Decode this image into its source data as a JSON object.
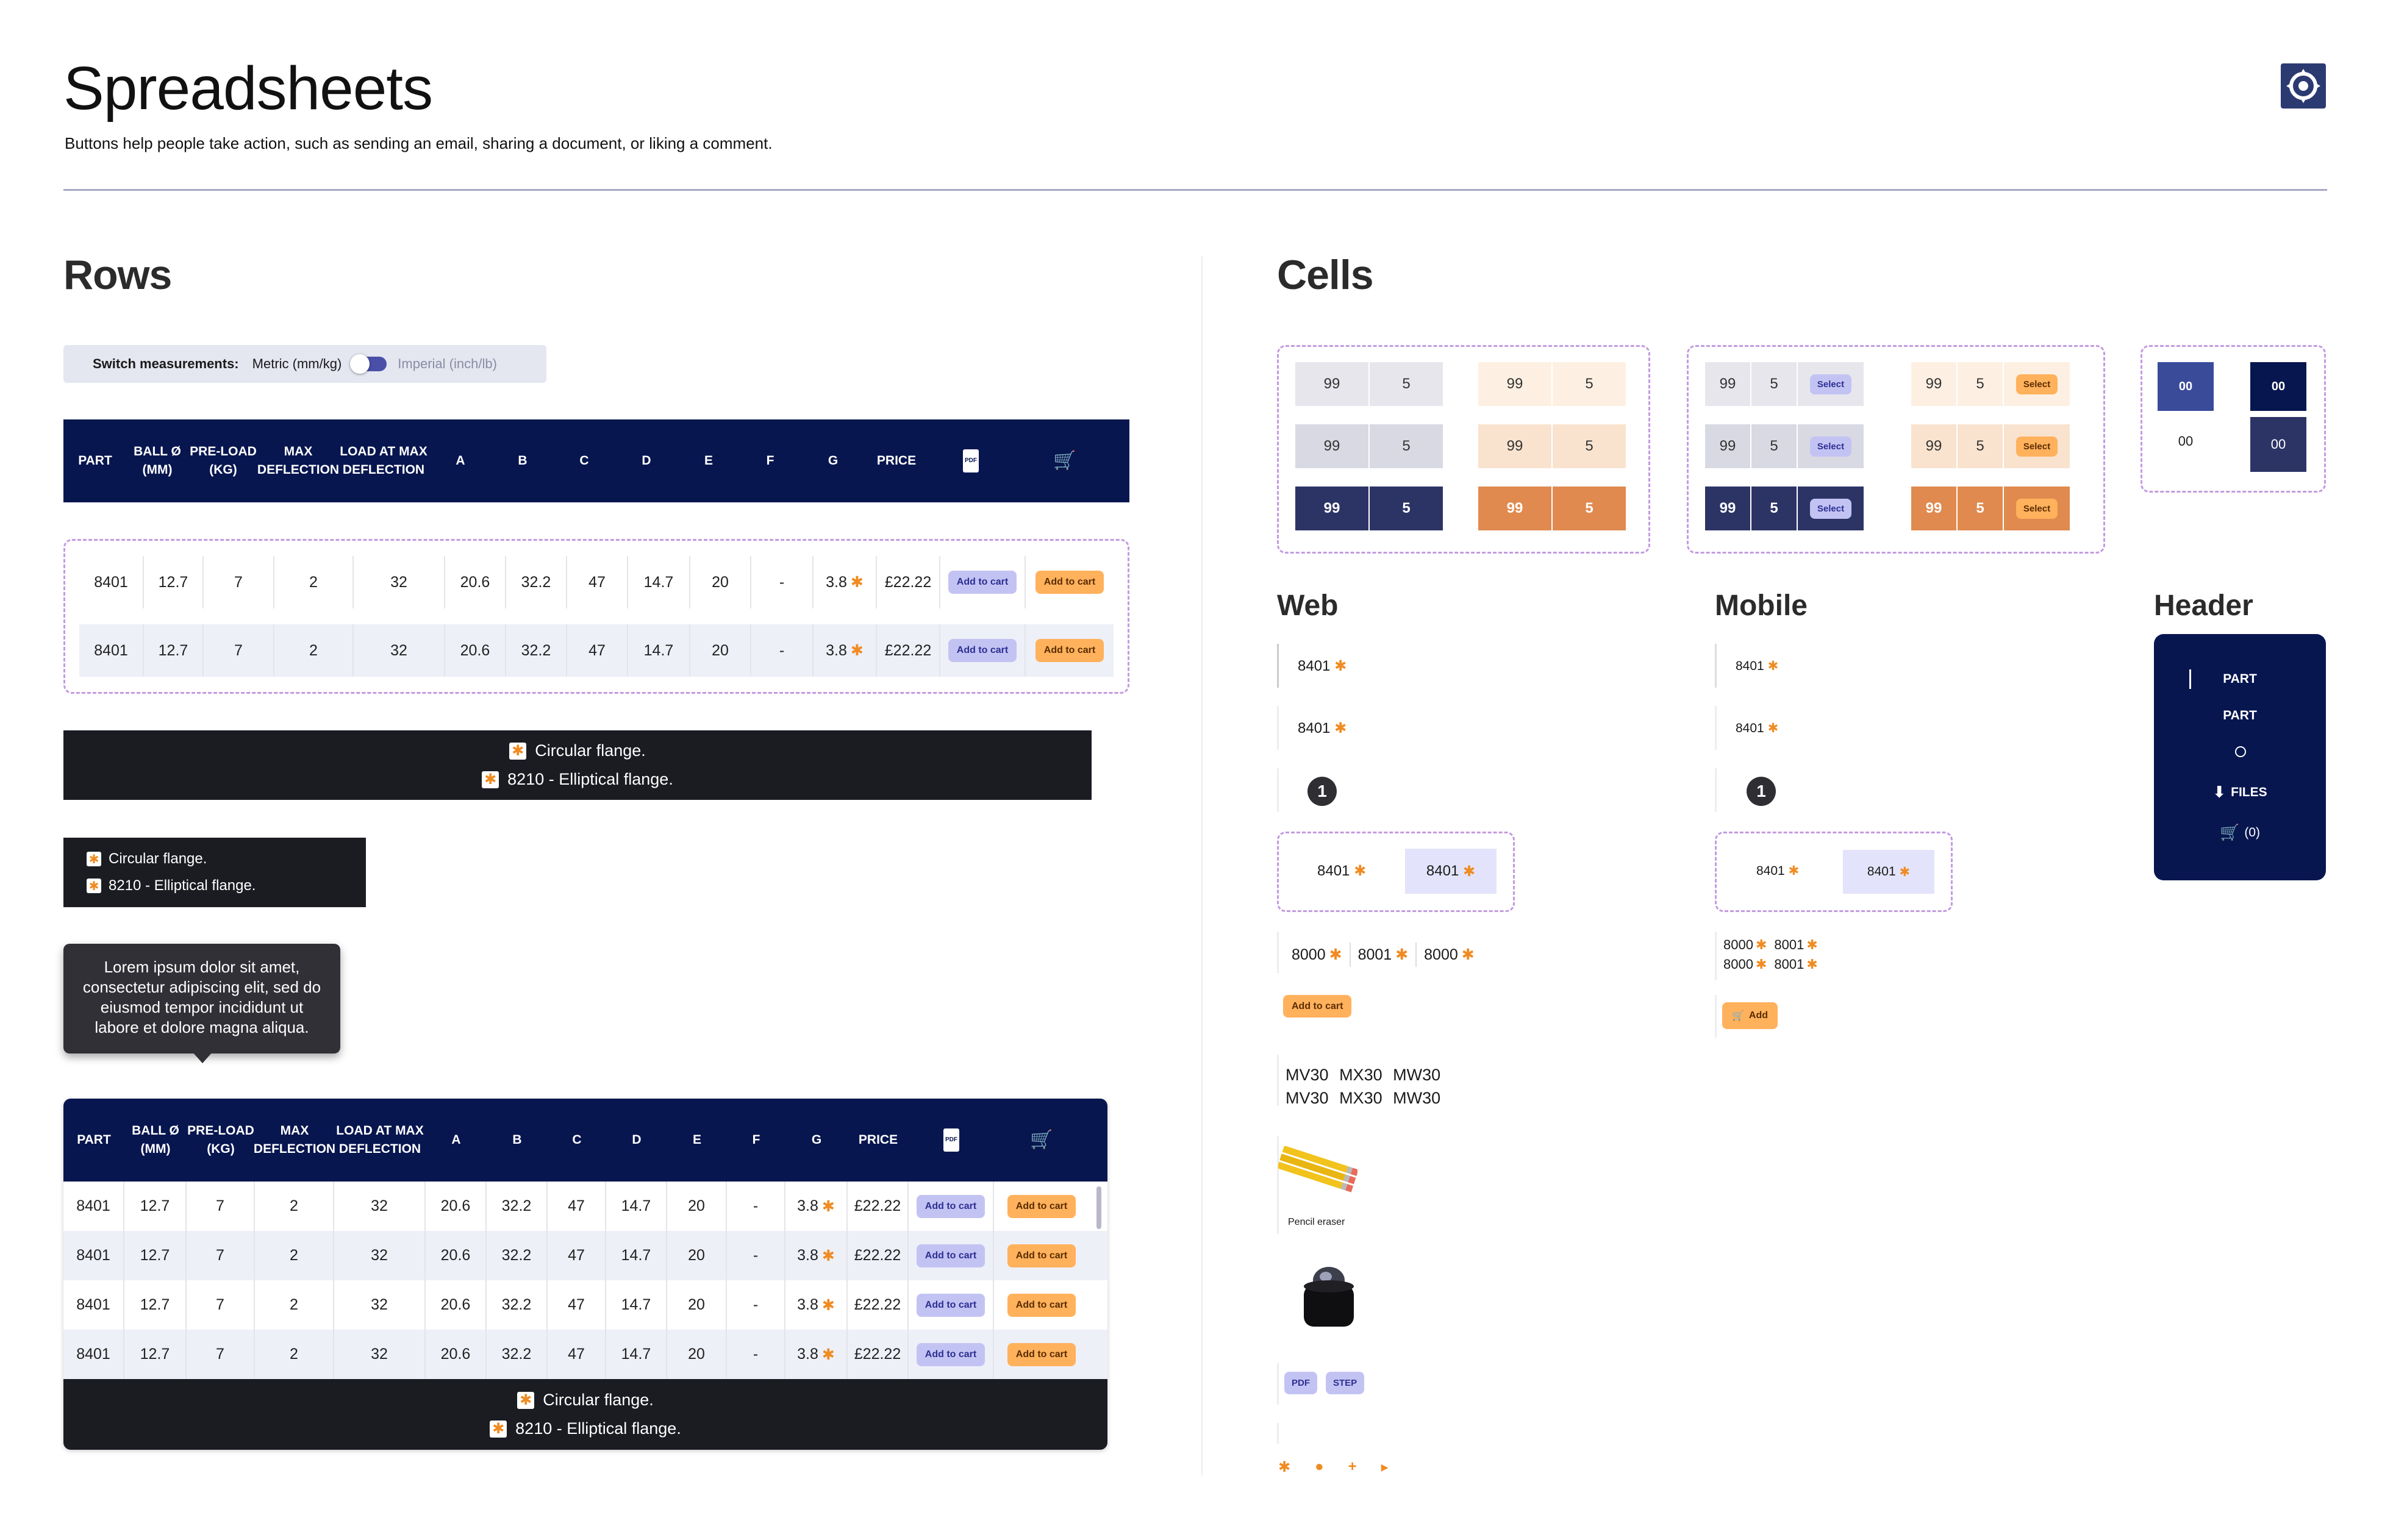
{
  "header": {
    "title": "Spreadsheets",
    "subtitle": "Buttons help people take action, such as sending an email, sharing a document, or liking a comment."
  },
  "rows": {
    "title": "Rows",
    "switch": {
      "label": "Switch measurements:",
      "metric": "Metric (mm/kg)",
      "imperial": "Imperial (inch/lb)"
    },
    "columns": [
      "PART",
      "BALL Ø (MM)",
      "PRE-LOAD (KG)",
      "MAX DEFLECTION",
      "LOAD AT MAX DEFLECTION",
      "A",
      "B",
      "C",
      "D",
      "E",
      "F",
      "G",
      "PRICE",
      "PDF",
      "CART"
    ],
    "col_heads": {
      "part": "PART",
      "ball": "BALL Ø\n(MM)",
      "preload": "PRE-LOAD\n(KG)",
      "maxdef": "MAX\nDEFLECTION",
      "load": "LOAD AT MAX\nDEFLECTION",
      "a": "A",
      "b": "B",
      "c": "C",
      "d": "D",
      "e": "E",
      "f": "F",
      "g": "G",
      "price": "PRICE",
      "pdf": "PDF"
    },
    "row": {
      "part": "8401",
      "ball": "12.7",
      "preload": "7",
      "maxdef": "2",
      "load": "32",
      "a": "20.6",
      "b": "32.2",
      "c": "47",
      "d": "14.7",
      "e": "20",
      "f": "-",
      "g": "3.8",
      "price": "£22.22",
      "add_label": "Add to cart"
    },
    "legend": [
      "Circular flange.",
      "8210 - Elliptical flange."
    ],
    "tooltip": "Lorem ipsum dolor sit amet, consectetur adipiscing elit, sed do eiusmod tempor incididunt ut labore et dolore magna aliqua."
  },
  "cells": {
    "title": "Cells",
    "qty": "99",
    "num": "5",
    "select": "Select",
    "zero": "00"
  },
  "web": {
    "title": "Web",
    "part": "8401",
    "badge": "1",
    "multi": [
      "8000",
      "8001",
      "8000"
    ],
    "add_label": "Add to cart",
    "codes_row1": [
      "MV30",
      "MX30",
      "MW30"
    ],
    "codes_row2": [
      "MV30",
      "MX30",
      "MW30"
    ],
    "image_caption": "Pencil eraser",
    "files": [
      "PDF",
      "STEP"
    ]
  },
  "mobile": {
    "title": "Mobile",
    "part": "8401",
    "badge": "1",
    "multi_row1": [
      "8000",
      "8001"
    ],
    "multi_row2": [
      "8000",
      "8001"
    ],
    "add_label": "Add"
  },
  "header_panel": {
    "title": "Header",
    "part1": "PART",
    "part2": "PART",
    "files": "FILES",
    "cart": "(0)"
  },
  "colors": {
    "navy": "#07164f",
    "dark": "#1b1c22",
    "orange": "#f08b21",
    "purple_button": "#c3c3f3",
    "orange_button": "#ffb15c"
  }
}
